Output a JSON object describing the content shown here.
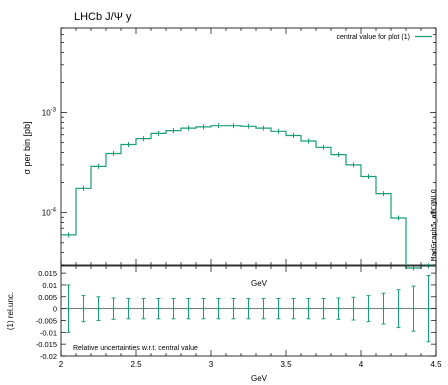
{
  "chart_data": [
    {
      "type": "line",
      "title": "LHCb J/Ψ y",
      "xlabel": "GeV",
      "ylabel": "σ per bin [pb]",
      "yscale": "log",
      "xlim": [
        2.0,
        4.5
      ],
      "ylim": [
        3e-05,
        0.007
      ],
      "grid": false,
      "legend": {
        "position": "top-right",
        "entries": [
          "central value for plot (1)"
        ]
      },
      "color": "#1a9e77",
      "x_ticks": [
        "2",
        "2.5",
        "3",
        "3.5",
        "4",
        "4.5"
      ],
      "y_tick_labels": [
        {
          "value": 0.001,
          "base": "10",
          "exp": "-3"
        },
        {
          "value": 0.0001,
          "base": "10",
          "exp": "-4"
        }
      ],
      "bin_width": 0.1,
      "series": [
        {
          "name": "central value for plot (1)",
          "x": [
            2.05,
            2.15,
            2.25,
            2.35,
            2.45,
            2.55,
            2.65,
            2.75,
            2.85,
            2.95,
            3.05,
            3.15,
            3.25,
            3.35,
            3.45,
            3.55,
            3.65,
            3.75,
            3.85,
            3.95,
            4.05,
            4.15,
            4.25,
            4.35,
            4.45
          ],
          "values": [
            6e-05,
            0.000175,
            0.00029,
            0.00039,
            0.00048,
            0.00055,
            0.00062,
            0.00066,
            0.0007,
            0.00072,
            0.00074,
            0.00074,
            0.00073,
            0.0007,
            0.00065,
            0.00059,
            0.00052,
            0.00045,
            0.00038,
            0.0003,
            0.00023,
            0.000155,
            8.85e-05,
            2.8e-05,
            2.95e-05
          ]
        }
      ]
    },
    {
      "type": "line",
      "xlabel": "GeV",
      "ylabel": "(1) rel.unc.",
      "title": "GeV",
      "annotation": "Relative uncertainties w.r.t. central value",
      "xlim": [
        2.0,
        4.5
      ],
      "ylim": [
        -0.02,
        0.018
      ],
      "x_ticks": [
        "2",
        "2.5",
        "3",
        "3.5",
        "4",
        "4.5"
      ],
      "y_ticks": [
        "0.015",
        "0.01",
        "0.005",
        "0",
        "-0.005",
        "-0.01",
        "-0.015",
        "-0.02"
      ],
      "color": "#1a9e77",
      "series": [
        {
          "x": [
            2.05,
            2.15,
            2.25,
            2.35,
            2.45,
            2.55,
            2.65,
            2.75,
            2.85,
            2.95,
            3.05,
            3.15,
            3.25,
            3.35,
            3.45,
            3.55,
            3.65,
            3.75,
            3.85,
            3.95,
            4.05,
            4.15,
            4.25,
            4.35,
            4.45
          ],
          "values": [
            0,
            0,
            0,
            0,
            0,
            0,
            0,
            0,
            0,
            0,
            0,
            0,
            0,
            0,
            0,
            0,
            0,
            0,
            0,
            0,
            0,
            0,
            0,
            0,
            0
          ],
          "errors": [
            0.01,
            0.0055,
            0.005,
            0.0045,
            0.0043,
            0.0043,
            0.0043,
            0.0043,
            0.0043,
            0.0043,
            0.0043,
            0.0043,
            0.0043,
            0.0043,
            0.0043,
            0.0043,
            0.0043,
            0.0043,
            0.0045,
            0.0048,
            0.0055,
            0.0065,
            0.008,
            0.0095,
            0.014
          ]
        }
      ]
    }
  ],
  "credit": "MadGraph5_aMC@NLO"
}
